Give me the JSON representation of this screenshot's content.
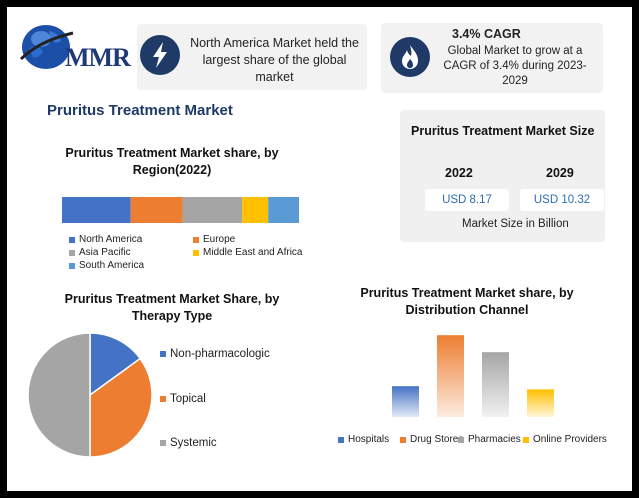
{
  "brand": {
    "logo_text": "MMR"
  },
  "colors": {
    "blue": "#4472c4",
    "orange": "#ed7d31",
    "gray": "#a5a5a5",
    "yellow": "#ffc000",
    "lightblue": "#5b9bd5",
    "navy": "#1f3a66"
  },
  "header": {
    "fact1_icon": "lightning-icon",
    "fact1_text": "North America Market held the largest share of the global market",
    "fact2_icon": "flame-icon",
    "fact2_title": "3.4% CAGR",
    "fact2_text": "Global Market to grow at a CAGR of 3.4% during 2023-2029"
  },
  "main_title": "Pruritus Treatment Market",
  "market_size": {
    "title": "Pruritus Treatment Market Size",
    "year1": "2022",
    "year2": "2029",
    "value1": "USD 8.17",
    "value2": "USD 10.32",
    "note": "Market Size in Billion"
  },
  "chart_data": [
    {
      "type": "bar",
      "orientation": "horizontal-stacked",
      "title": "Pruritus Treatment Market share, by Region(2022)",
      "series": [
        {
          "name": "North America",
          "value": 29,
          "color": "#4472c4"
        },
        {
          "name": "Europe",
          "value": 22,
          "color": "#ed7d31"
        },
        {
          "name": "Asia Pacific",
          "value": 25,
          "color": "#a5a5a5"
        },
        {
          "name": "Middle East and Africa",
          "value": 11,
          "color": "#ffc000"
        },
        {
          "name": "South America",
          "value": 13,
          "color": "#5b9bd5"
        }
      ]
    },
    {
      "type": "pie",
      "title": "Pruritus Treatment Market Share, by Therapy Type",
      "slices": [
        {
          "name": "Non-pharmacologic",
          "value": 15,
          "color": "#4472c4"
        },
        {
          "name": "Topical",
          "value": 35,
          "color": "#ed7d31"
        },
        {
          "name": "Systemic",
          "value": 50,
          "color": "#a5a5a5"
        }
      ]
    },
    {
      "type": "bar",
      "title": "Pruritus Treatment Market share, by Distribution Channel",
      "categories": [
        "Hospitals",
        "Drug Stores",
        "Pharmacies",
        "Online Providers"
      ],
      "values": [
        29,
        77,
        61,
        26
      ],
      "colors": [
        "#4472c4",
        "#ed7d31",
        "#a5a5a5",
        "#ffc000"
      ],
      "ylim": [
        0,
        80
      ]
    }
  ]
}
